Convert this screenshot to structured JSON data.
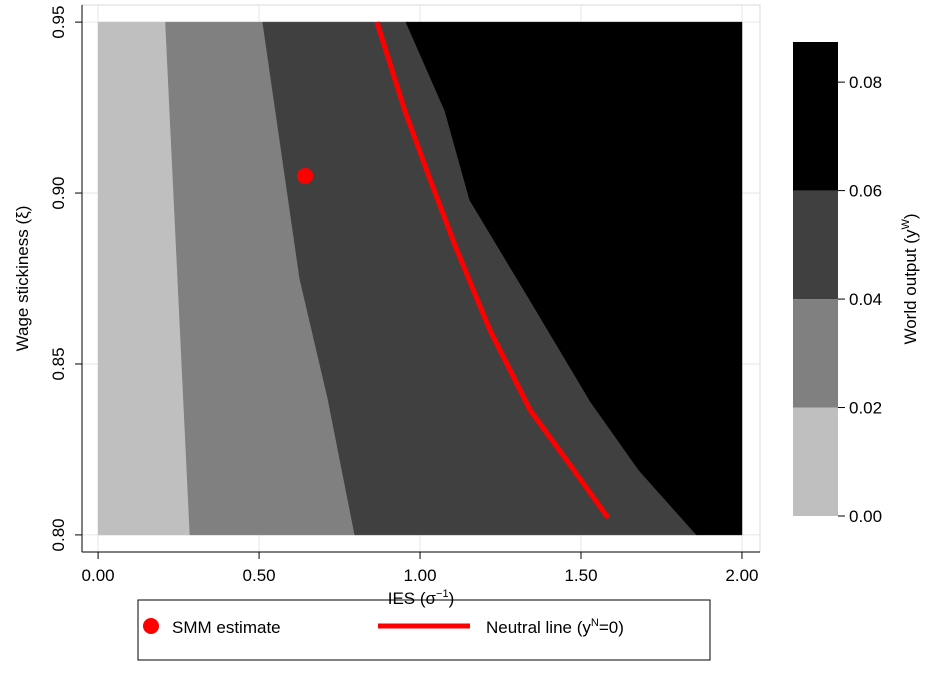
{
  "chart_data": {
    "type": "contour",
    "xlabel": [
      "IES (σ",
      "−1",
      ")"
    ],
    "ylabel": "Wage stickiness (ξ)",
    "xlim": [
      -0.05,
      2.056
    ],
    "ylim": [
      0.795,
      0.955
    ],
    "xticks": [
      {
        "value": 0,
        "label": "0.00"
      },
      {
        "value": 0.5,
        "label": "0.50"
      },
      {
        "value": 1,
        "label": "1.00"
      },
      {
        "value": 1.5,
        "label": "1.50"
      },
      {
        "value": 2,
        "label": "2.00"
      }
    ],
    "yticks": [
      {
        "value": 0.8,
        "label": "0.80"
      },
      {
        "value": 0.85,
        "label": "0.85"
      },
      {
        "value": 0.9,
        "label": "0.90"
      },
      {
        "value": 0.95,
        "label": "0.95"
      }
    ],
    "grid": true,
    "extent": {
      "x": [
        0,
        2
      ],
      "y": [
        0.8,
        0.95
      ]
    },
    "contour": {
      "levels": [
        0,
        0.02,
        0.04,
        0.06
      ],
      "colors": [
        "#bfbfbf",
        "#808080",
        "#404040",
        "#000000"
      ],
      "boundaries": [
        {
          "x": [
            0.286,
            0.248,
            0.21
          ],
          "y": [
            0.8,
            0.875,
            0.95
          ]
        },
        {
          "x": [
            0.798,
            0.714,
            0.627,
            0.512
          ],
          "y": [
            0.8,
            0.84,
            0.875,
            0.95
          ]
        },
        {
          "x": [
            1.86,
            1.68,
            1.53,
            1.34,
            1.155,
            1.078,
            0.957
          ],
          "y": [
            0.8,
            0.819,
            0.839,
            0.869,
            0.898,
            0.924,
            0.95
          ]
        }
      ]
    },
    "colorbar": {
      "label": [
        "World output (y",
        "W",
        ")"
      ],
      "lim": [
        0,
        0.0874
      ],
      "ticks": [
        {
          "value": 0,
          "label": "0.00"
        },
        {
          "value": 0.02,
          "label": "0.02"
        },
        {
          "value": 0.04,
          "label": "0.04"
        },
        {
          "value": 0.06,
          "label": "0.06"
        },
        {
          "value": 0.08,
          "label": "0.08"
        }
      ]
    },
    "series": [
      {
        "name": "SMM estimate",
        "kind": "scatter",
        "color": "#ff0000",
        "x": [
          0.643
        ],
        "values": [
          0.905
        ]
      },
      {
        "name": [
          "Neutral line (y",
          "N",
          "=0)"
        ],
        "kind": "line",
        "color": "#ff0000",
        "x": [
          0.866,
          0.953,
          1.031,
          1.109,
          1.217,
          1.342,
          1.466,
          1.584
        ],
        "values": [
          0.95,
          0.924,
          0.904,
          0.8846,
          0.8599,
          0.8365,
          0.8205,
          0.805
        ]
      }
    ]
  }
}
